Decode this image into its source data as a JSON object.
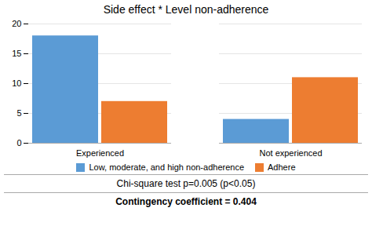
{
  "chart_data": {
    "type": "bar",
    "title": "Side effect * Level non-adherence",
    "categories": [
      "Experienced",
      "Not experienced"
    ],
    "series": [
      {
        "name": "Low, moderate, and high non-adherence",
        "color": "#5B9BD5",
        "values": [
          18,
          4
        ]
      },
      {
        "name": "Adhere",
        "color": "#ED7D31",
        "values": [
          7,
          11
        ]
      }
    ],
    "ylim": [
      0,
      20
    ],
    "yticks": [
      0,
      5,
      10,
      15,
      20
    ],
    "grid": true,
    "legend": "bottom",
    "annotations": [
      "Chi-square test p=0.005 (p<0.05)",
      "Contingency coefficient = 0.404"
    ]
  }
}
